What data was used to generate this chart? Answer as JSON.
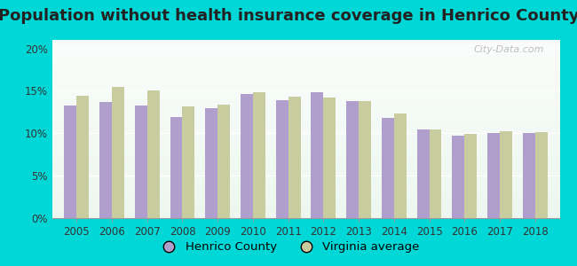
{
  "title": "Population without health insurance coverage in Henrico County",
  "years": [
    2005,
    2006,
    2007,
    2008,
    2009,
    2010,
    2011,
    2012,
    2013,
    2014,
    2015,
    2016,
    2017,
    2018
  ],
  "henrico": [
    13.3,
    13.7,
    13.3,
    11.9,
    13.0,
    14.6,
    13.9,
    14.8,
    13.8,
    11.8,
    10.4,
    9.7,
    10.0,
    10.0
  ],
  "virginia": [
    14.4,
    15.5,
    15.0,
    13.2,
    13.4,
    14.8,
    14.3,
    14.2,
    13.8,
    12.3,
    10.5,
    9.9,
    10.2,
    10.1
  ],
  "henrico_color": "#b09fcc",
  "virginia_color": "#c8cc9f",
  "background_outer": "#00d8d8",
  "background_plot_top": "#e8f7ee",
  "background_plot_bottom": "#f5fdf5",
  "yticks": [
    0,
    5,
    10,
    15,
    20
  ],
  "ylim": [
    0,
    21
  ],
  "bar_width": 0.35,
  "title_fontsize": 13,
  "tick_fontsize": 8.5,
  "legend_fontsize": 9.5,
  "watermark": "City-Data.com"
}
